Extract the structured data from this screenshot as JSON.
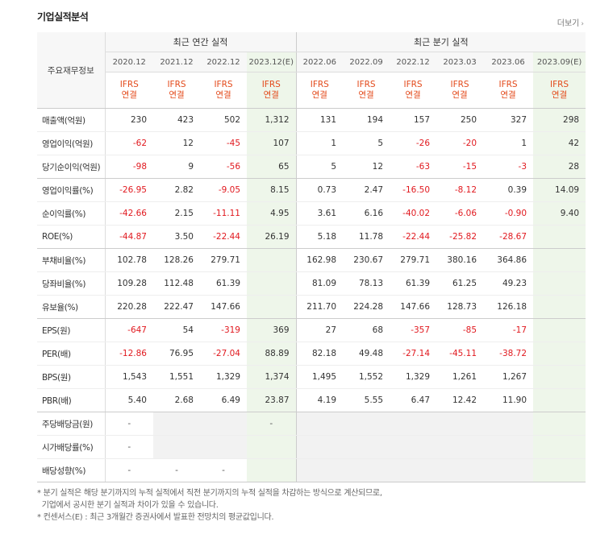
{
  "page": {
    "title": "기업실적분석",
    "more_label": "더보기",
    "corner_label": "주요재무정보",
    "annual_header": "최근 연간 실적",
    "quarter_header": "최근 분기 실적",
    "columns": [
      {
        "period": "2020.12",
        "std": "IFRS\n연결",
        "est": false
      },
      {
        "period": "2021.12",
        "std": "IFRS\n연결",
        "est": false
      },
      {
        "period": "2022.12",
        "std": "IFRS\n연결",
        "est": false
      },
      {
        "period": "2023.12(E)",
        "std": "IFRS\n연결",
        "est": true
      },
      {
        "period": "2022.06",
        "std": "IFRS\n연결",
        "est": false
      },
      {
        "period": "2022.09",
        "std": "IFRS\n연결",
        "est": false
      },
      {
        "period": "2022.12",
        "std": "IFRS\n연결",
        "est": false
      },
      {
        "period": "2023.03",
        "std": "IFRS\n연결",
        "est": false
      },
      {
        "period": "2023.06",
        "std": "IFRS\n연결",
        "est": false
      },
      {
        "period": "2023.09(E)",
        "std": "IFRS\n연결",
        "est": true
      }
    ],
    "rows": [
      {
        "label": "매출액(억원)",
        "group_end": false,
        "values": [
          "230",
          "423",
          "502",
          "1,312",
          "131",
          "194",
          "157",
          "250",
          "327",
          "298"
        ]
      },
      {
        "label": "영업이익(억원)",
        "group_end": false,
        "values": [
          "-62",
          "12",
          "-45",
          "107",
          "1",
          "5",
          "-26",
          "-20",
          "1",
          "42"
        ]
      },
      {
        "label": "당기순이익(억원)",
        "group_end": true,
        "values": [
          "-98",
          "9",
          "-56",
          "65",
          "5",
          "12",
          "-63",
          "-15",
          "-3",
          "28"
        ]
      },
      {
        "label": "영업이익률(%)",
        "group_end": false,
        "values": [
          "-26.95",
          "2.82",
          "-9.05",
          "8.15",
          "0.73",
          "2.47",
          "-16.50",
          "-8.12",
          "0.39",
          "14.09"
        ]
      },
      {
        "label": "순이익률(%)",
        "group_end": false,
        "values": [
          "-42.66",
          "2.15",
          "-11.11",
          "4.95",
          "3.61",
          "6.16",
          "-40.02",
          "-6.06",
          "-0.90",
          "9.40"
        ]
      },
      {
        "label": "ROE(%)",
        "group_end": true,
        "values": [
          "-44.87",
          "3.50",
          "-22.44",
          "26.19",
          "5.18",
          "11.78",
          "-22.44",
          "-25.82",
          "-28.67",
          ""
        ]
      },
      {
        "label": "부채비율(%)",
        "group_end": false,
        "values": [
          "102.78",
          "128.26",
          "279.71",
          "",
          "162.98",
          "230.67",
          "279.71",
          "380.16",
          "364.86",
          ""
        ]
      },
      {
        "label": "당좌비율(%)",
        "group_end": false,
        "values": [
          "109.28",
          "112.48",
          "61.39",
          "",
          "81.09",
          "78.13",
          "61.39",
          "61.25",
          "49.23",
          ""
        ]
      },
      {
        "label": "유보율(%)",
        "group_end": true,
        "values": [
          "220.28",
          "222.47",
          "147.66",
          "",
          "211.70",
          "224.28",
          "147.66",
          "128.73",
          "126.18",
          ""
        ]
      },
      {
        "label": "EPS(원)",
        "group_end": false,
        "values": [
          "-647",
          "54",
          "-319",
          "369",
          "27",
          "68",
          "-357",
          "-85",
          "-17",
          ""
        ]
      },
      {
        "label": "PER(배)",
        "group_end": false,
        "values": [
          "-12.86",
          "76.95",
          "-27.04",
          "88.89",
          "82.18",
          "49.48",
          "-27.14",
          "-45.11",
          "-38.72",
          ""
        ]
      },
      {
        "label": "BPS(원)",
        "group_end": false,
        "values": [
          "1,543",
          "1,551",
          "1,329",
          "1,374",
          "1,495",
          "1,552",
          "1,329",
          "1,261",
          "1,267",
          ""
        ]
      },
      {
        "label": "PBR(배)",
        "group_end": true,
        "values": [
          "5.40",
          "2.68",
          "6.49",
          "23.87",
          "4.19",
          "5.55",
          "6.47",
          "12.42",
          "11.90",
          ""
        ]
      },
      {
        "label": "주당배당금(원)",
        "group_end": false,
        "values": [
          "-",
          "",
          "",
          "-",
          "",
          "",
          "",
          "",
          "",
          ""
        ]
      },
      {
        "label": "시가배당률(%)",
        "group_end": false,
        "values": [
          "-",
          "",
          "",
          "",
          "",
          "",
          "",
          "",
          "",
          ""
        ]
      },
      {
        "label": "배당성향(%)",
        "group_end": true,
        "values": [
          "-",
          "-",
          "-",
          "",
          "",
          "",
          "",
          "",
          "",
          ""
        ]
      }
    ],
    "notes": [
      "* 분기 실적은 해당 분기까지의 누적 실적에서 직전 분기까지의 누적 실적을 차감하는 방식으로 계산되므로,",
      "  기업에서 공시한 분기 실적과 차이가 있을 수 있습니다.",
      "* 컨센서스(E) : 최근 3개월간 증권사에서 발표한 전망치의 평균값입니다."
    ],
    "colors": {
      "negative": "#e1191f",
      "standard": "#e34a1b",
      "estimate_bg": "#eef6ea",
      "empty_bg": "#f2f2f2"
    }
  }
}
